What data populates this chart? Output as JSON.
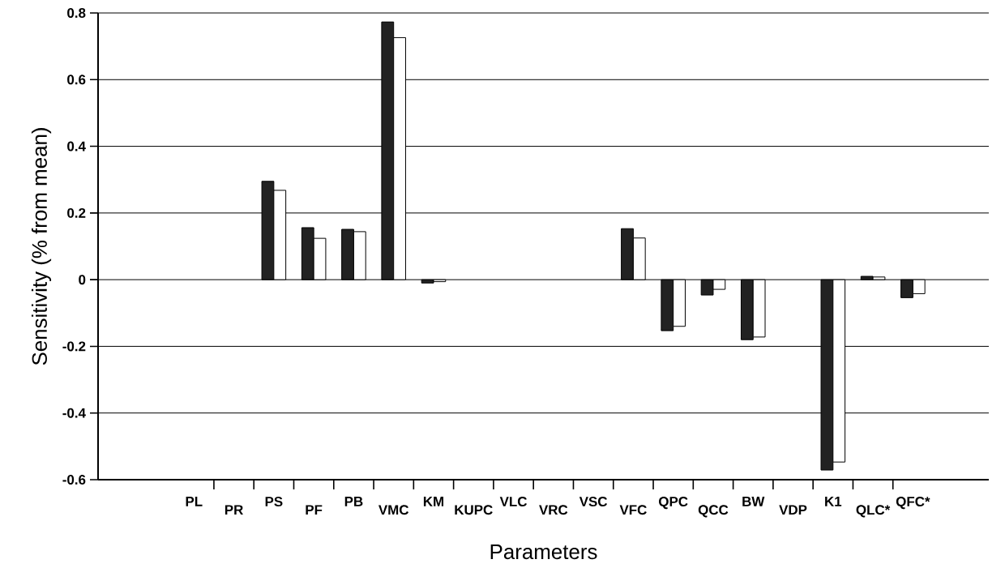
{
  "chart_data": {
    "type": "bar",
    "xlabel": "Parameters",
    "ylabel": "Sensitivity (% from mean)",
    "categories": [
      "PL",
      "PR",
      "PS",
      "PF",
      "PB",
      "VMC",
      "KM",
      "KUPC",
      "VLC",
      "VRC",
      "VSC",
      "VFC",
      "QPC",
      "QCC",
      "BW",
      "VDP",
      "K1",
      "QLC*",
      "QFC*"
    ],
    "series": [
      {
        "color": "#222222",
        "values": [
          null,
          null,
          0.295,
          0.156,
          0.151,
          0.773,
          -0.01,
          null,
          null,
          null,
          null,
          0.153,
          -0.153,
          -0.046,
          -0.18,
          null,
          -0.571,
          0.01,
          -0.054
        ]
      },
      {
        "color": "#ffffff",
        "values": [
          null,
          null,
          0.268,
          0.124,
          0.144,
          0.726,
          -0.006,
          null,
          null,
          null,
          null,
          0.125,
          -0.14,
          -0.029,
          -0.172,
          null,
          -0.547,
          0.008,
          -0.042
        ]
      }
    ],
    "ylim": [
      -0.6,
      0.8
    ],
    "yticks": [
      {
        "value": -0.6,
        "label": "-0.6"
      },
      {
        "value": -0.4,
        "label": "-0.4"
      },
      {
        "value": -0.2,
        "label": "-0.2"
      },
      {
        "value": 0,
        "label": "0"
      },
      {
        "value": 0.2,
        "label": "0.2"
      },
      {
        "value": 0.4,
        "label": "0.4"
      },
      {
        "value": 0.6,
        "label": "0.6"
      },
      {
        "value": 0.8,
        "label": "0.8"
      }
    ],
    "grid": "y",
    "legend": false
  }
}
